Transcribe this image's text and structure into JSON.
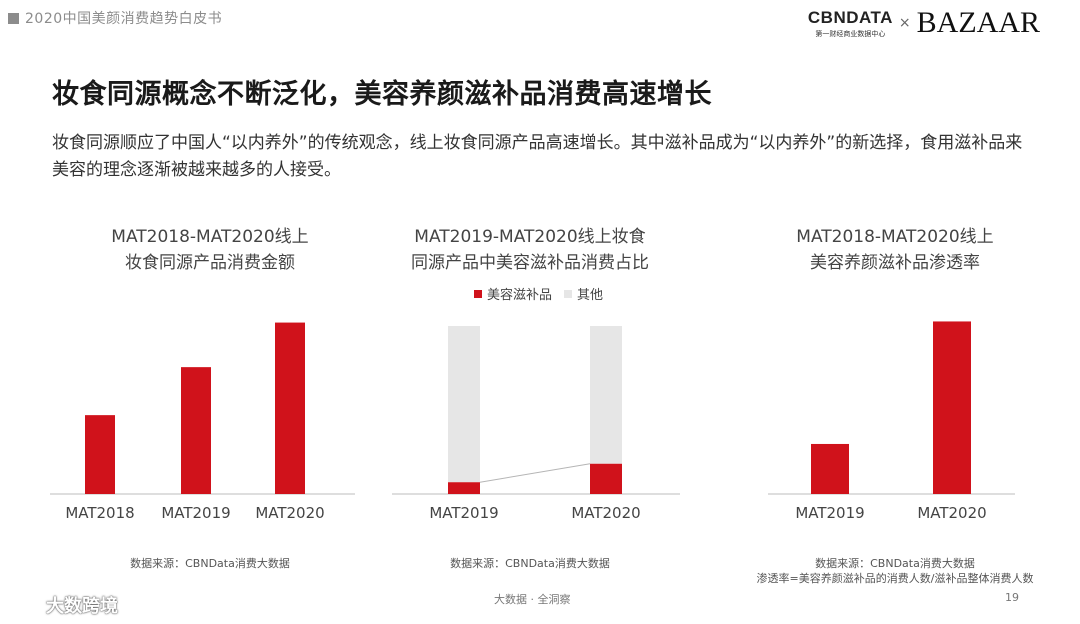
{
  "header": {
    "report_title": "2020中国美颜消费趋势白皮书",
    "brand_cbn": "CBNDATA",
    "brand_cbn_sub": "第一财经商业数据中心",
    "brand_x": "×",
    "brand_bazaar": "BAZAAR"
  },
  "page": {
    "title": "妆食同源概念不断泛化，美容养颜滋补品消费高速增长",
    "description": "妆食同源顺应了中国人“以内养外”的传统观念，线上妆食同源产品高速增长。其中滋补品成为“以内养外”的新选择，食用滋补品来美容的理念逐渐被越来越多的人接受。"
  },
  "charts": {
    "c1": {
      "title_l1": "MAT2018-MAT2020线上",
      "title_l2": "妆食同源产品消费金额",
      "source": "数据来源：CBNData消费大数据"
    },
    "c2": {
      "title_l1": "MAT2019-MAT2020线上妆食",
      "title_l2": "同源产品中美容滋补品消费占比",
      "legend_a": "美容滋补品",
      "legend_b": "其他",
      "source": "数据来源：CBNData消费大数据"
    },
    "c3": {
      "title_l1": "MAT2018-MAT2020线上",
      "title_l2": "美容养颜滋补品渗透率",
      "source_l1": "数据来源：CBNData消费大数据",
      "source_l2": "渗透率=美容养颜滋补品的消费人数/滋补品整体消费人数"
    }
  },
  "footer": {
    "text": "大数据 · 全洞察",
    "page_number": "19",
    "watermark": "大数跨境"
  },
  "colors": {
    "accent": "#d0121b",
    "other": "#e6e6e6",
    "axis": "#bdbdbd"
  },
  "chart_data": [
    {
      "type": "bar",
      "title": "MAT2018-MAT2020线上妆食同源产品消费金额",
      "categories": [
        "MAT2018",
        "MAT2019",
        "MAT2020"
      ],
      "values": [
        0.46,
        0.74,
        1.0
      ],
      "ylim": [
        0,
        1.05
      ],
      "grid": false,
      "value_labels": false
    },
    {
      "type": "bar",
      "stacked": true,
      "percent": true,
      "title": "MAT2019-MAT2020线上妆食同源产品中美容滋补品消费占比",
      "categories": [
        "MAT2019",
        "MAT2020"
      ],
      "series": [
        {
          "name": "美容滋补品",
          "values": [
            7,
            18
          ]
        },
        {
          "name": "其他",
          "values": [
            93,
            82
          ]
        }
      ],
      "ylim": [
        0,
        100
      ],
      "legend": "top",
      "connector": true
    },
    {
      "type": "bar",
      "title": "MAT2018-MAT2020线上美容养颜滋补品渗透率",
      "categories": [
        "MAT2019",
        "MAT2020"
      ],
      "values": [
        0.29,
        1.0
      ],
      "ylim": [
        0,
        1.02
      ],
      "grid": false
    }
  ]
}
